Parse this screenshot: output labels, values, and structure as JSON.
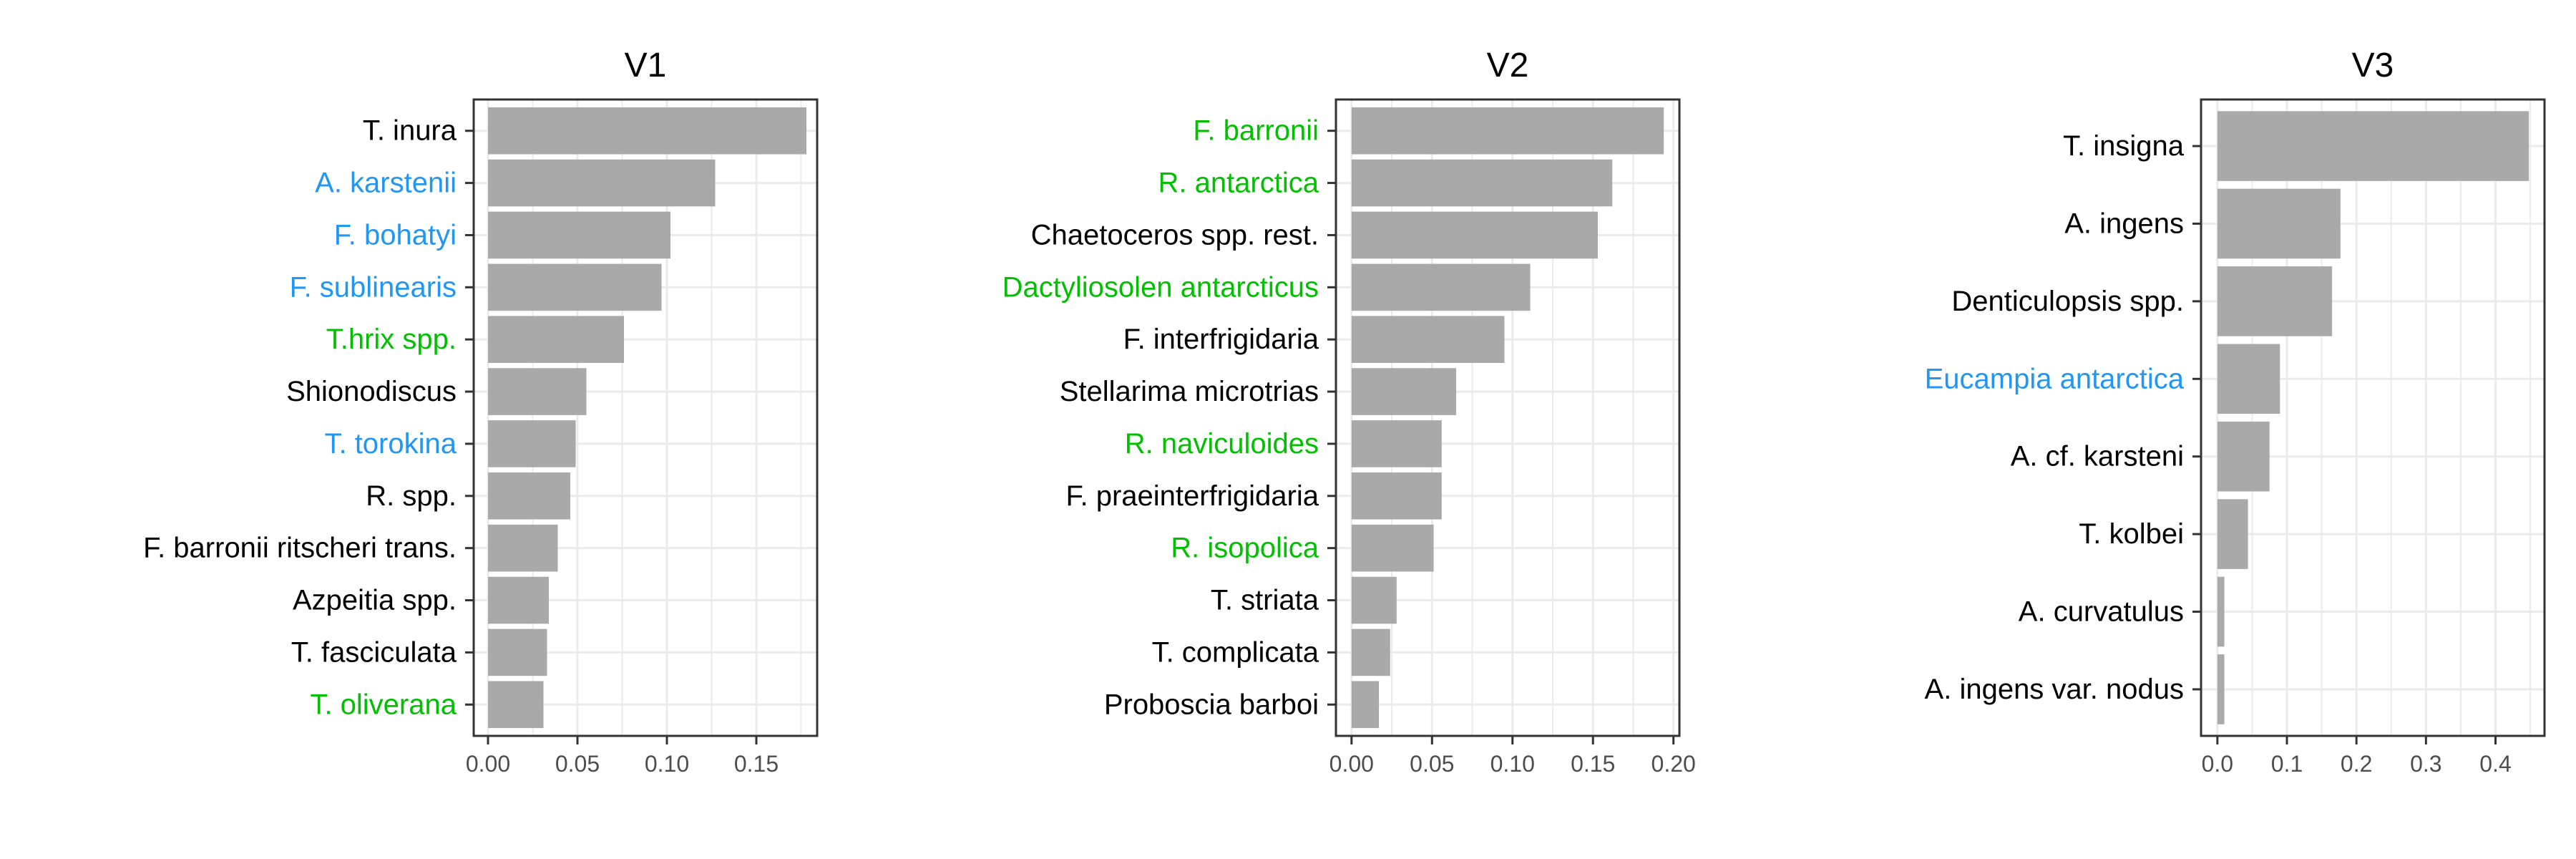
{
  "colors": {
    "bar": "#a9a9a9",
    "grid": "#ebebeb",
    "frame": "#333333",
    "text_default": "#000000",
    "text_blue": "#2196f3",
    "text_green": "#00c000"
  },
  "chart_data": [
    {
      "type": "bar",
      "orientation": "horizontal",
      "title": "V1",
      "xlabel": "",
      "ylabel": "",
      "xlim": [
        -0.008,
        0.184
      ],
      "ticks": [
        0.0,
        0.05,
        0.1,
        0.15
      ],
      "tick_labels": [
        "0.00",
        "0.05",
        "0.10",
        "0.15"
      ],
      "grid": true,
      "categories": [
        "T. inura",
        "A. karstenii",
        "F. bohatyi",
        "F. sublinearis",
        "T.hrix spp.",
        "Shionodiscus",
        "T. torokina",
        "R. spp.",
        "F. barronii ritscheri trans.",
        "Azpeitia spp.",
        "T. fasciculata",
        "T. oliverana"
      ],
      "label_colors": [
        "default",
        "blue",
        "blue",
        "blue",
        "green",
        "default",
        "blue",
        "default",
        "default",
        "default",
        "default",
        "green"
      ],
      "values": [
        0.178,
        0.127,
        0.102,
        0.097,
        0.076,
        0.055,
        0.049,
        0.046,
        0.039,
        0.034,
        0.033,
        0.031
      ]
    },
    {
      "type": "bar",
      "orientation": "horizontal",
      "title": "V2",
      "xlabel": "",
      "ylabel": "",
      "xlim": [
        -0.0097,
        0.2037
      ],
      "ticks": [
        0.0,
        0.05,
        0.1,
        0.15,
        0.2
      ],
      "tick_labels": [
        "0.00",
        "0.05",
        "0.10",
        "0.15",
        "0.20"
      ],
      "grid": true,
      "categories": [
        "F. barronii",
        "R. antarctica",
        "Chaetoceros spp. rest.",
        "Dactyliosolen antarcticus",
        "F. interfrigidaria",
        "Stellarima microtrias ",
        "R. naviculoides",
        "F. praeinterfrigidaria",
        "R. isopolica",
        "T. striata",
        "T. complicata",
        "Proboscia barboi "
      ],
      "label_colors": [
        "green",
        "green",
        "default",
        "green",
        "default",
        "default",
        "green",
        "default",
        "green",
        "default",
        "default",
        "default"
      ],
      "values": [
        0.194,
        0.162,
        0.153,
        0.111,
        0.095,
        0.065,
        0.056,
        0.056,
        0.051,
        0.028,
        0.024,
        0.017
      ]
    },
    {
      "type": "bar",
      "orientation": "horizontal",
      "title": "V3",
      "xlabel": "",
      "ylabel": "",
      "xlim": [
        -0.0235,
        0.4705
      ],
      "ticks": [
        0.0,
        0.1,
        0.2,
        0.3,
        0.4
      ],
      "tick_labels": [
        "0.0",
        "0.1",
        "0.2",
        "0.3",
        "0.4"
      ],
      "grid": true,
      "categories": [
        "T. insigna",
        "A. ingens",
        "Denticulopsis spp.",
        "Eucampia antarctica",
        "A. cf. karsteni",
        "T. kolbei",
        "A. curvatulus",
        "A. ingens var. nodus"
      ],
      "label_colors": [
        "default",
        "default",
        "default",
        "blue",
        "default",
        "default",
        "default",
        "default"
      ],
      "values": [
        0.448,
        0.177,
        0.165,
        0.09,
        0.075,
        0.044,
        0.01,
        0.01
      ]
    }
  ]
}
